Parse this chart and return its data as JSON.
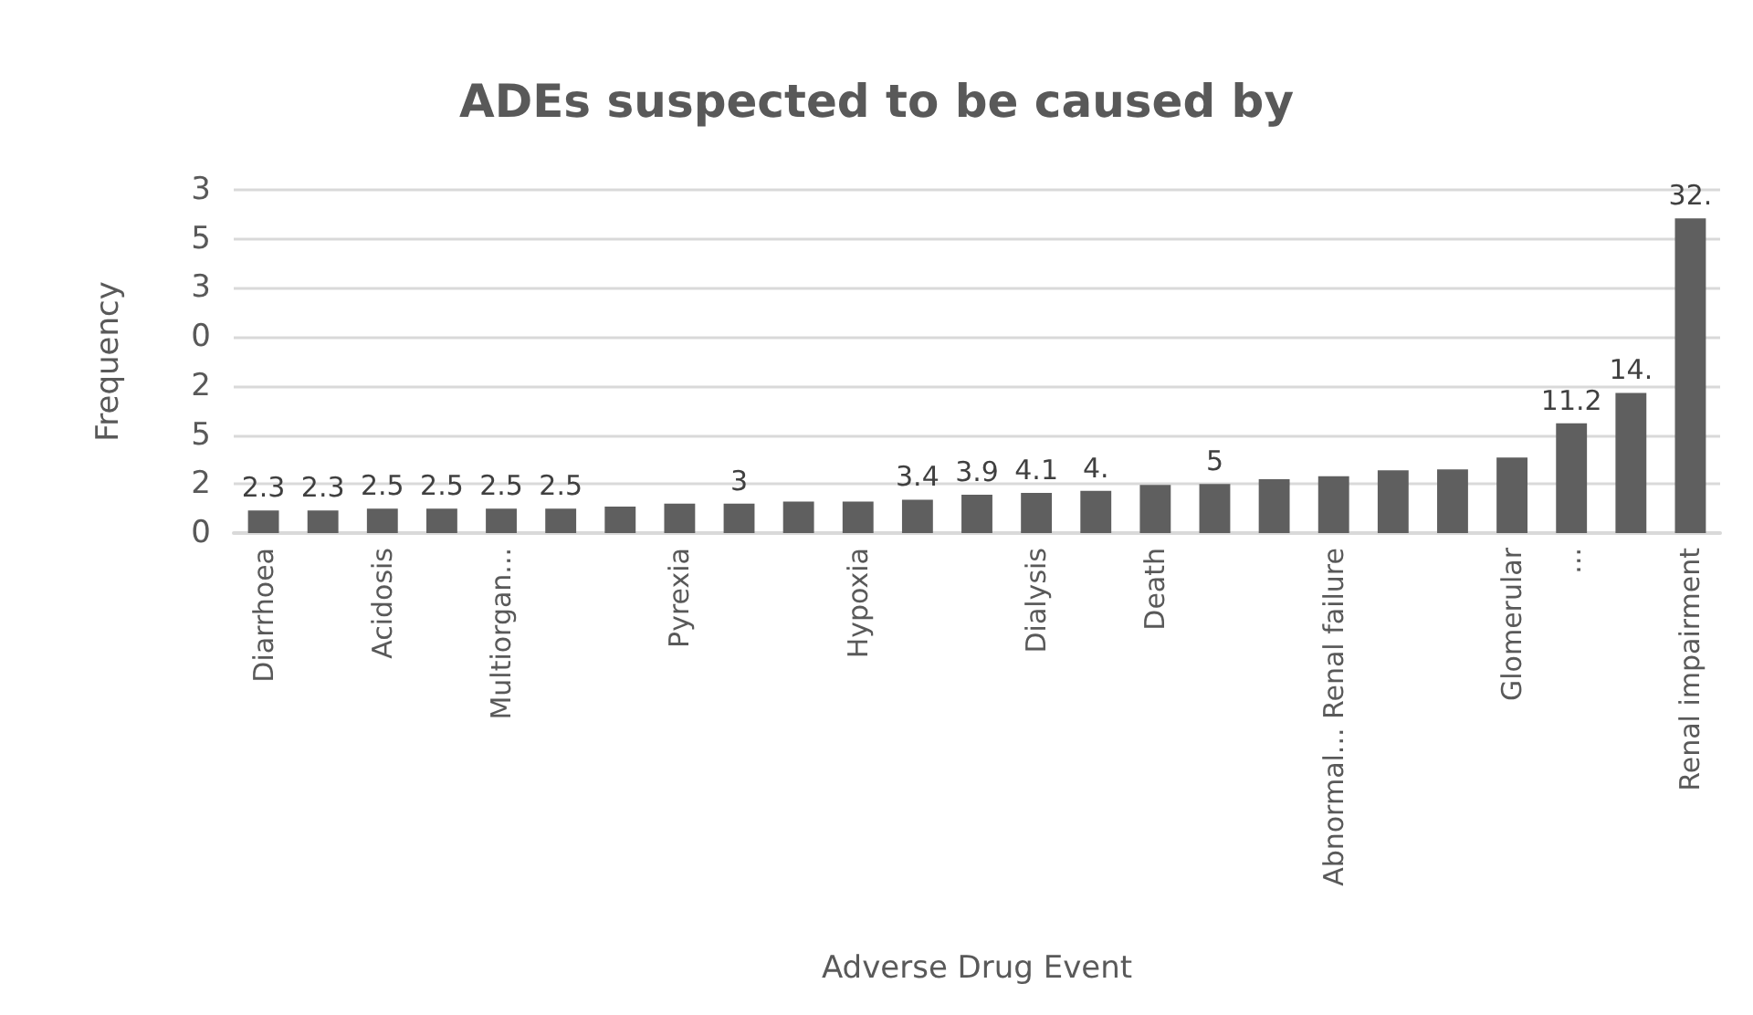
{
  "chart_data": {
    "type": "bar",
    "title": "ADEs suspected to be caused by",
    "xlabel": "Adverse Drug Event",
    "ylabel": "Frequency",
    "categories": [
      "Diarrhoea",
      null,
      "Acidosis",
      null,
      "Multiorgan...",
      null,
      null,
      "Pyrexia",
      null,
      null,
      "Hypoxia",
      null,
      null,
      "Dialysis",
      null,
      "Death",
      null,
      null,
      "Abnormal... Renal failure",
      null,
      null,
      "Glomerular",
      "...",
      null,
      "Renal impairment"
    ],
    "values": [
      2.3,
      2.3,
      2.5,
      2.5,
      2.5,
      2.5,
      2.7,
      3,
      3,
      3.2,
      3.2,
      3.4,
      3.9,
      4.1,
      4.3,
      4.9,
      5,
      5.5,
      5.8,
      6.4,
      6.5,
      7.7,
      11.2,
      14.3,
      32.1
    ],
    "value_labels": [
      "2.3",
      "2.3",
      "2.5",
      "2.5",
      "2.5",
      "2.5",
      null,
      null,
      "3",
      null,
      null,
      "3.4",
      "3.9",
      "4.1",
      "4.",
      null,
      "5",
      null,
      null,
      null,
      null,
      null,
      "11.2",
      "14.",
      "32."
    ],
    "color": "#5f5f5f",
    "ylim": [
      0,
      35
    ],
    "yticks": [
      {
        "value": 0,
        "label": null
      },
      {
        "value": 5,
        "label": null
      },
      {
        "value": 10,
        "label": null
      },
      {
        "value": 15,
        "label": null
      },
      {
        "value": 20,
        "label": null
      },
      {
        "value": 25,
        "label": null
      },
      {
        "value": 30,
        "label": null
      },
      {
        "value": 35,
        "label": null
      }
    ],
    "annotations": [
      "0",
      "2",
      "5",
      "2",
      "0",
      "3",
      "5",
      "3"
    ],
    "grid": "y"
  }
}
